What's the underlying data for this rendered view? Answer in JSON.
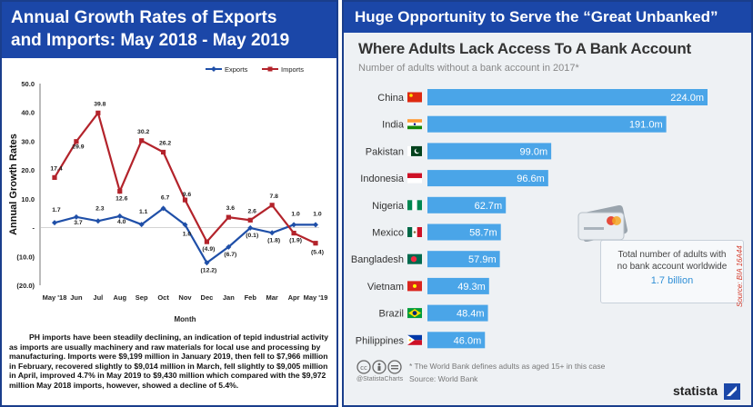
{
  "left_panel": {
    "title_line1": "Annual Growth Rates of Exports",
    "title_line2": "and Imports: May 2018 - May 2019",
    "paragraph_lines": [
      "PH imports have been steadily declining, an indication of tepid industrial activity as imports are usually machinery and raw materials for local use and processing by manufacturing.  Imports were $9,199 million in January 2019, then fell to $7,966 million in February, recovered slightly to $9,014 million in March, fell slightly to $9,005 million in April, improved 4.7% in May 2019 to $9,430 million which compared with the $9,972 million May 2018 imports, however, showed a decline of 5.4%."
    ]
  },
  "right_panel": {
    "header": "Huge Opportunity to Serve the “Great Unbanked”",
    "title": "Where Adults Lack Access To A Bank Account",
    "subtitle": "Number of adults without a bank account in 2017*",
    "info_line1": "Total number of adults with",
    "info_line2": "no bank account worldwide",
    "info_value": "1.7 billion",
    "footnote": "* The World Bank defines adults as aged 15+ in this case",
    "source": "Source: World Bank",
    "handle": "@StatistaCharts",
    "brand": "statista",
    "credit": "Source: BIA 16A44",
    "bar_color": "#4aa5e8",
    "icons": [
      "creative-commons-icon",
      "credit-card-icon",
      "statista-logo-icon"
    ]
  },
  "chart_data": [
    {
      "type": "line",
      "title": "",
      "xlabel": "Month",
      "ylabel": "Annual Growth Rates",
      "ylim": [
        -20,
        50
      ],
      "yticks": [
        "50.0",
        "40.0",
        "30.0",
        "20.0",
        "10.0",
        "-",
        "(10.0)",
        "(20.0)"
      ],
      "ytick_values": [
        50,
        40,
        30,
        20,
        10,
        0,
        -10,
        -20
      ],
      "categories": [
        "May '18",
        "Jun",
        "Jul",
        "Aug",
        "Sep",
        "Oct",
        "Nov",
        "Dec",
        "Jan",
        "Feb",
        "Mar",
        "Apr",
        "May '19"
      ],
      "legend": "top-right",
      "grid": false,
      "series": [
        {
          "name": "Exports",
          "color": "#1f4fa8",
          "values": [
            1.7,
            3.7,
            2.3,
            4.0,
            1.1,
            6.7,
            1.0,
            -12.2,
            -6.7,
            -0.1,
            -1.8,
            1.0,
            1.0
          ],
          "labels": [
            "1.7",
            "3.7",
            "2.3",
            "4.0",
            "1.1",
            "6.7",
            "1.0",
            "(12.2)",
            "(6.7)",
            "(0.1)",
            "(1.8)",
            "1.0",
            "1.0"
          ]
        },
        {
          "name": "Imports",
          "color": "#b3232b",
          "values": [
            17.4,
            29.9,
            39.8,
            12.6,
            30.2,
            26.2,
            9.6,
            -4.9,
            3.6,
            2.6,
            7.8,
            -1.9,
            -5.4
          ],
          "labels": [
            "17.4",
            "29.9",
            "39.8",
            "12.6",
            "30.2",
            "26.2",
            "9.6",
            "(4.9)",
            "3.6",
            "2.6",
            "7.8",
            "(1.9)",
            "(5.4)"
          ]
        }
      ]
    },
    {
      "type": "bar",
      "orientation": "horizontal",
      "title": "Where Adults Lack Access To A Bank Account",
      "subtitle": "Number of adults without a bank account in 2017*",
      "categories": [
        "China",
        "India",
        "Pakistan",
        "Indonesia",
        "Nigeria",
        "Mexico",
        "Bangladesh",
        "Vietnam",
        "Brazil",
        "Philippines"
      ],
      "values": [
        224.0,
        191.0,
        99.0,
        96.6,
        62.7,
        58.7,
        57.9,
        49.3,
        48.4,
        46.0
      ],
      "value_labels": [
        "224.0m",
        "191.0m",
        "99.0m",
        "96.6m",
        "62.7m",
        "58.7m",
        "57.9m",
        "49.3m",
        "48.4m",
        "46.0m"
      ],
      "flags": [
        "china-flag-icon",
        "india-flag-icon",
        "pakistan-flag-icon",
        "indonesia-flag-icon",
        "nigeria-flag-icon",
        "mexico-flag-icon",
        "bangladesh-flag-icon",
        "vietnam-flag-icon",
        "brazil-flag-icon",
        "philippines-flag-icon"
      ]
    }
  ]
}
